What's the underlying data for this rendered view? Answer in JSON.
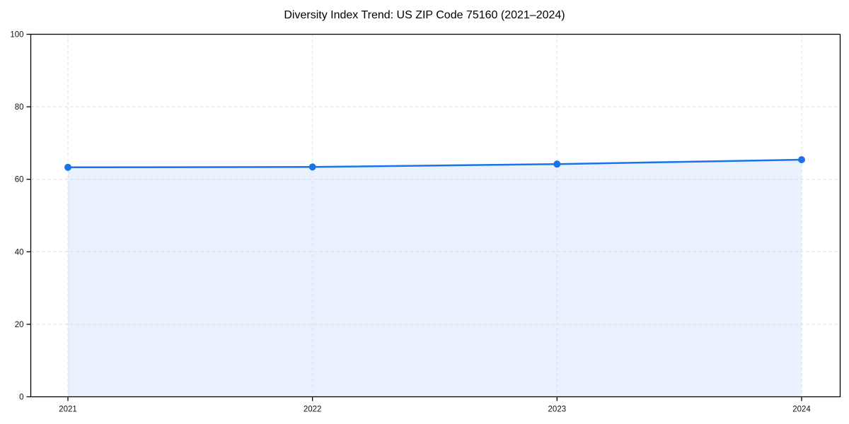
{
  "chart_data": {
    "type": "line",
    "title": "Diversity Index Trend: US ZIP Code 75160 (2021–2024)",
    "x": [
      "2021",
      "2022",
      "2023",
      "2024"
    ],
    "series": [
      {
        "name": "Diversity Index",
        "values": [
          63.3,
          63.4,
          64.2,
          65.4
        ]
      }
    ],
    "xlabel": "",
    "ylabel": "",
    "ylim": [
      0,
      100
    ],
    "yticks": [
      0,
      20,
      40,
      60,
      80,
      100
    ],
    "grid": true,
    "grid_style": "dashed",
    "legend": "none",
    "area_fill": true,
    "colors": {
      "line": "#1a73e8",
      "marker": "#1a73e8",
      "fill": "rgba(26,115,232,0.10)",
      "grid": "#dcdcdc",
      "spine": "#000000",
      "background": "#ffffff",
      "text": "#111111"
    }
  }
}
